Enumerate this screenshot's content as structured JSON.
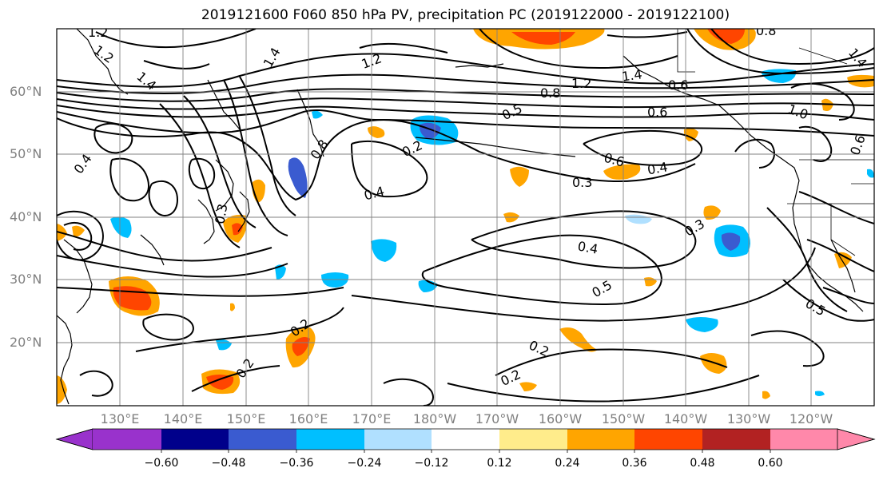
{
  "title": "2019121600 F060 850 hPa PV, precipitation PC (2019122000 - 2019122100)",
  "map": {
    "lat_labels": [
      "60°N",
      "50°N",
      "40°N",
      "30°N",
      "20°N"
    ],
    "lon_labels": [
      "130°E",
      "140°E",
      "150°E",
      "160°E",
      "170°E",
      "180°W",
      "170°W",
      "160°W",
      "150°W",
      "140°W",
      "130°W",
      "120°W"
    ],
    "contour_labels": [
      "1.2",
      "1.2",
      "1.4",
      "1.2",
      "1.4",
      "0.4",
      "1.2",
      "1.4",
      "0.6",
      "0.8",
      "0.5",
      "0.6",
      "0.2",
      "0.4",
      "0.6",
      "0.3",
      "0.4",
      "0.3",
      "0.4",
      "0.5",
      "0.2",
      "0.2",
      "0.2",
      "0.2",
      "0.5",
      "1.0",
      "1.4",
      "0.6",
      "0.3",
      "0.8",
      "0.8"
    ],
    "gridlines": true,
    "coastlines": true
  },
  "colorbar": {
    "ticks": [
      "−0.60",
      "−0.48",
      "−0.36",
      "−0.24",
      "−0.12",
      "0.12",
      "0.24",
      "0.36",
      "0.48",
      "0.60"
    ],
    "colors": [
      "#9932cc",
      "#00008b",
      "#3a5bd0",
      "#00bfff",
      "#b0e0ff",
      "#ffffff",
      "#ffec8b",
      "#ffa500",
      "#ff4500",
      "#b22222",
      "#ff88aa"
    ],
    "extend": "both"
  }
}
